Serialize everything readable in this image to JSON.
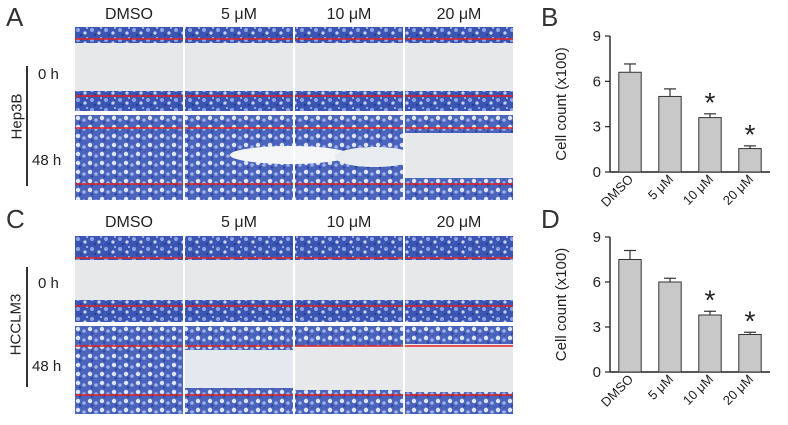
{
  "panels": {
    "a": "A",
    "b": "B",
    "c": "C",
    "d": "D"
  },
  "columns": [
    "DMSO",
    "5 μM",
    "10 μM",
    "20 μM"
  ],
  "rows": [
    {
      "cell_line": "Hep3B",
      "times": [
        "0 h",
        "48 h"
      ]
    },
    {
      "cell_line": "HCCLM3",
      "times": [
        "0 h",
        "48 h"
      ]
    }
  ],
  "colors": {
    "stain": "#3a55b4",
    "scratch": "#e6e8e9",
    "line": "#e02020",
    "bar": "#c8c8c8"
  },
  "chart_data": [
    {
      "type": "bar",
      "panel": "B",
      "categories": [
        "DMSO",
        "5 μM",
        "10 μM",
        "20 μM"
      ],
      "values": [
        6.6,
        5.0,
        3.6,
        1.55
      ],
      "errors": [
        0.55,
        0.5,
        0.25,
        0.18
      ],
      "significance": [
        "",
        "",
        "*",
        "*"
      ],
      "ylabel": "Cell count (x100)",
      "yticks": [
        "0",
        "3",
        "6",
        "9"
      ],
      "ylim": [
        0,
        9
      ]
    },
    {
      "type": "bar",
      "panel": "D",
      "categories": [
        "DMSO",
        "5 μM",
        "10 μM",
        "20 μM"
      ],
      "values": [
        7.5,
        6.0,
        3.8,
        2.5
      ],
      "errors": [
        0.6,
        0.25,
        0.25,
        0.15
      ],
      "significance": [
        "",
        "",
        "*",
        "*"
      ],
      "ylabel": "Cell count (x100)",
      "yticks": [
        "0",
        "3",
        "6",
        "9"
      ],
      "ylim": [
        0,
        9
      ]
    }
  ]
}
